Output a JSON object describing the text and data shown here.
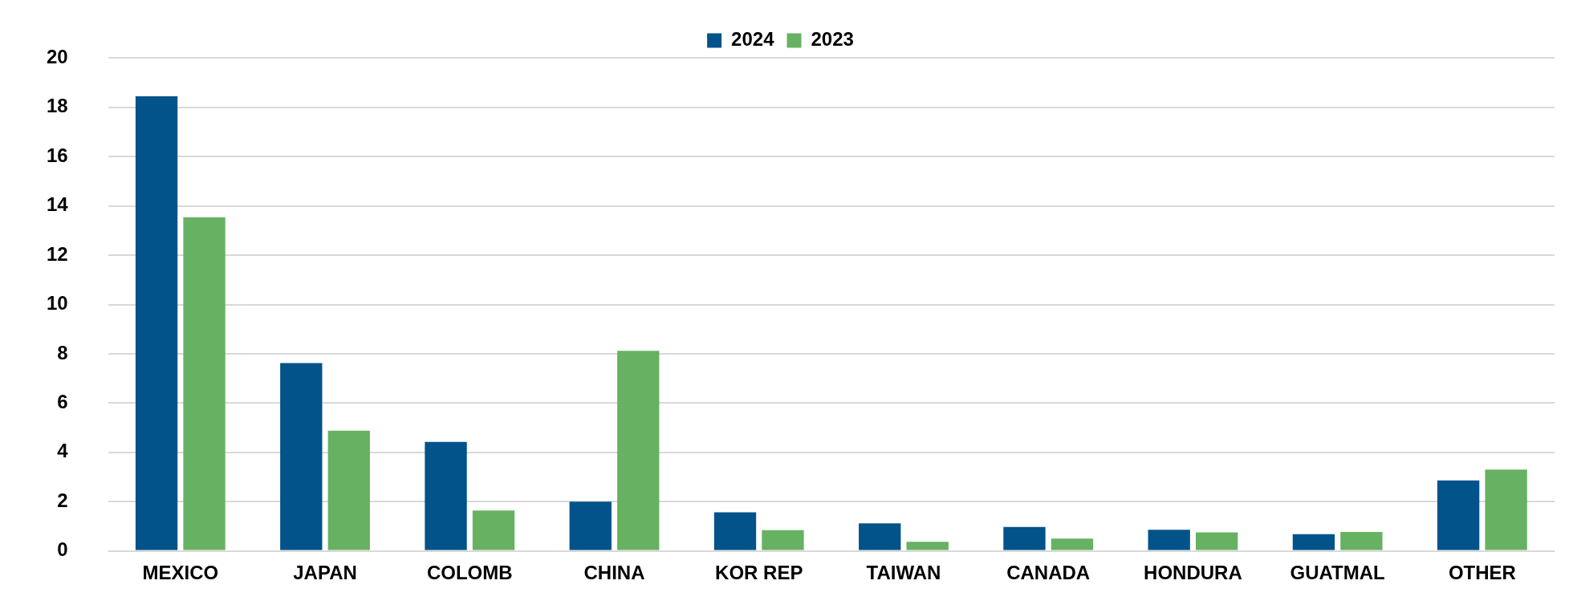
{
  "chart_data": {
    "type": "bar",
    "categories": [
      "MEXICO",
      "JAPAN",
      "COLOMB",
      "CHINA",
      "KOR REP",
      "TAIWAN",
      "CANADA",
      "HONDURA",
      "GUATMAL",
      "OTHER"
    ],
    "series": [
      {
        "name": "2024",
        "color": "#02538a",
        "values": [
          18.45,
          7.62,
          4.42,
          2.0,
          1.57,
          1.12,
          0.97,
          0.86,
          0.68,
          2.86
        ]
      },
      {
        "name": "2023",
        "color": "#66b262",
        "values": [
          13.54,
          4.88,
          1.64,
          8.12,
          0.84,
          0.37,
          0.5,
          0.75,
          0.77,
          3.3
        ]
      }
    ],
    "ylim": [
      0,
      20
    ],
    "yticks": [
      0,
      2,
      4,
      6,
      8,
      10,
      12,
      14,
      16,
      18,
      20
    ],
    "grid": "y",
    "legend": "top"
  }
}
